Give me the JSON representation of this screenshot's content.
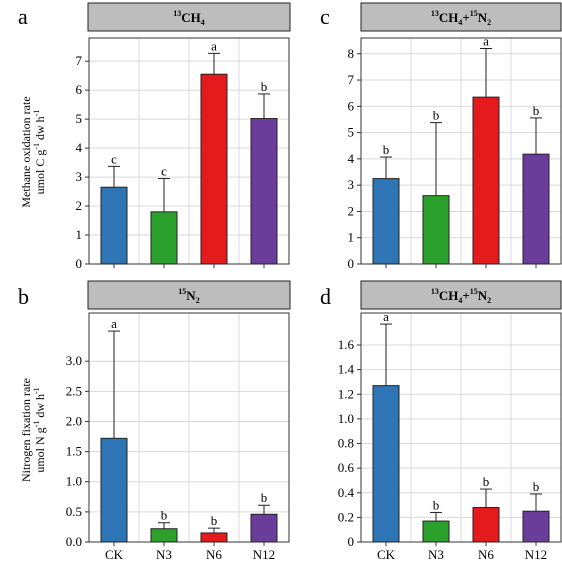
{
  "figure": {
    "ylabel_top_line1": "Methane oxidation rate",
    "ylabel_top_line2": "umol C g",
    "ylabel_top_line3": " dw h",
    "ylabel_bottom_line1": "Nitrogen fixation rate",
    "ylabel_bottom_line2": "umol N g",
    "ylabel_bottom_line3": " dw h",
    "unit_exp": "-1"
  },
  "colors": {
    "CK": "#2e75b6",
    "N3": "#2ca02c",
    "N6": "#e41a1c",
    "N12": "#6a3d9a",
    "header_bg": "#bdbdbd"
  },
  "chart_data": [
    {
      "panel": "a",
      "type": "bar",
      "header": {
        "iso": "13",
        "base": "CH",
        "sub": "4"
      },
      "categories": [
        "CK",
        "N3",
        "N6",
        "N12"
      ],
      "values": [
        2.65,
        1.8,
        6.55,
        5.02
      ],
      "errors": [
        0.72,
        1.15,
        0.72,
        0.85
      ],
      "letters": [
        "c",
        "c",
        "a",
        "b"
      ],
      "ylim": [
        0,
        7.8
      ],
      "yticks": [
        0,
        1,
        2,
        3,
        4,
        5,
        6,
        7
      ],
      "ytick_labels": [
        "0",
        "1",
        "2",
        "3",
        "4",
        "5",
        "6",
        "7"
      ]
    },
    {
      "panel": "c",
      "type": "bar",
      "header": {
        "iso": "13",
        "base": "CH",
        "sub": "4",
        "plus": "+",
        "iso2": "15",
        "base2": "N",
        "sub2": "2"
      },
      "categories": [
        "CK",
        "N3",
        "N6",
        "N12"
      ],
      "values": [
        3.25,
        2.6,
        6.35,
        4.18
      ],
      "errors": [
        0.82,
        2.78,
        1.85,
        1.38
      ],
      "letters": [
        "b",
        "b",
        "a",
        "b"
      ],
      "ylim": [
        0,
        8.6
      ],
      "yticks": [
        0,
        1,
        2,
        3,
        4,
        5,
        6,
        7,
        8
      ],
      "ytick_labels": [
        "0",
        "1",
        "2",
        "3",
        "4",
        "5",
        "6",
        "7",
        "8"
      ]
    },
    {
      "panel": "b",
      "type": "bar",
      "header": {
        "iso": "15",
        "base": "N",
        "sub": "2"
      },
      "categories": [
        "CK",
        "N3",
        "N6",
        "N12"
      ],
      "values": [
        1.72,
        0.22,
        0.15,
        0.46
      ],
      "errors": [
        1.78,
        0.1,
        0.08,
        0.15
      ],
      "letters": [
        "a",
        "b",
        "b",
        "b"
      ],
      "ylim": [
        0,
        3.8
      ],
      "yticks": [
        0,
        0.5,
        1,
        1.5,
        2,
        2.5,
        3
      ],
      "ytick_labels": [
        "0.0",
        "0.5",
        "1.0",
        "1.5",
        "2.0",
        "2.5",
        "3.0"
      ]
    },
    {
      "panel": "d",
      "type": "bar",
      "header": {
        "iso": "13",
        "base": "CH",
        "sub": "4",
        "plus": "+",
        "iso2": "15",
        "base2": "N",
        "sub2": "2"
      },
      "categories": [
        "CK",
        "N3",
        "N6",
        "N12"
      ],
      "values": [
        1.27,
        0.17,
        0.28,
        0.25
      ],
      "errors": [
        0.5,
        0.07,
        0.15,
        0.14
      ],
      "letters": [
        "a",
        "b",
        "b",
        "b"
      ],
      "ylim": [
        0,
        1.86
      ],
      "yticks": [
        0,
        0.2,
        0.4,
        0.6,
        0.8,
        1.0,
        1.2,
        1.4,
        1.6
      ],
      "ytick_labels": [
        "0",
        "0.2",
        "0.4",
        "0.6",
        "0.8",
        "1.0",
        "1.2",
        "1.4",
        "1.6"
      ]
    }
  ]
}
